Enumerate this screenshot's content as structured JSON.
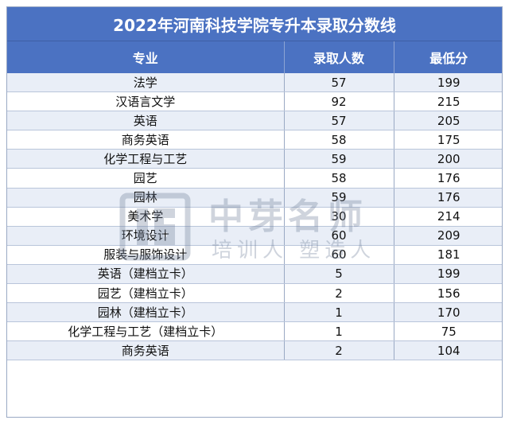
{
  "title": "2022年河南科技学院专升本录取分数线",
  "headers": [
    "专业",
    "录取人数",
    "最低分"
  ],
  "rows": [
    [
      "法学",
      "57",
      "199"
    ],
    [
      "汉语言文学",
      "92",
      "215"
    ],
    [
      "英语",
      "57",
      "205"
    ],
    [
      "商务英语",
      "58",
      "175"
    ],
    [
      "化学工程与工艺",
      "59",
      "200"
    ],
    [
      "园艺",
      "58",
      "176"
    ],
    [
      "园林",
      "59",
      "176"
    ],
    [
      "美术学",
      "30",
      "214"
    ],
    [
      "环境设计",
      "60",
      "209"
    ],
    [
      "服装与服饰设计",
      "60",
      "181"
    ],
    [
      "英语（建档立卡）",
      "5",
      "199"
    ],
    [
      "园艺（建档立卡）",
      "2",
      "156"
    ],
    [
      "园林（建档立卡）",
      "1",
      "170"
    ],
    [
      "化学工程与工艺（建档立卡）",
      "1",
      "75"
    ],
    [
      "商务英语",
      "2",
      "104"
    ]
  ],
  "watermark": {
    "name": "中芽名师",
    "slogan": "培训人 塑造人",
    "icon": "brand-logo-icon"
  },
  "colors": {
    "header_bg": "#4b72c2",
    "stripe": "#e9eef7"
  }
}
